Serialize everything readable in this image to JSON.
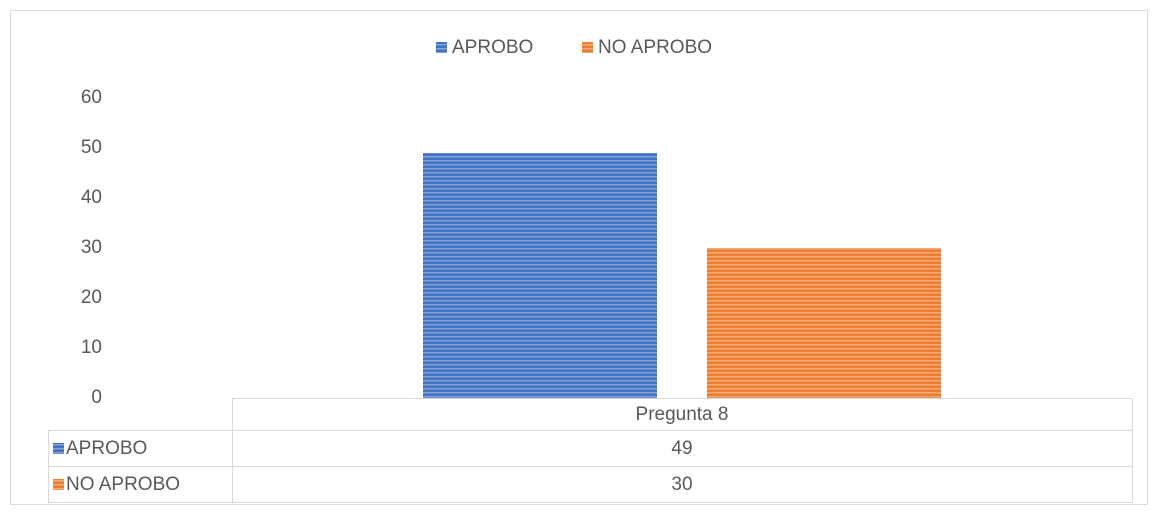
{
  "chart_data": {
    "type": "bar",
    "categories": [
      "Pregunta 8"
    ],
    "series": [
      {
        "name": "APROBO",
        "color": "#4472c4",
        "values": [
          49
        ]
      },
      {
        "name": "NO APROBO",
        "color": "#ed7d31",
        "values": [
          30
        ]
      }
    ],
    "ylim": [
      0,
      60
    ],
    "yticks": [
      0,
      10,
      20,
      30,
      40,
      50,
      60
    ],
    "legend": "top",
    "data_table": true
  }
}
